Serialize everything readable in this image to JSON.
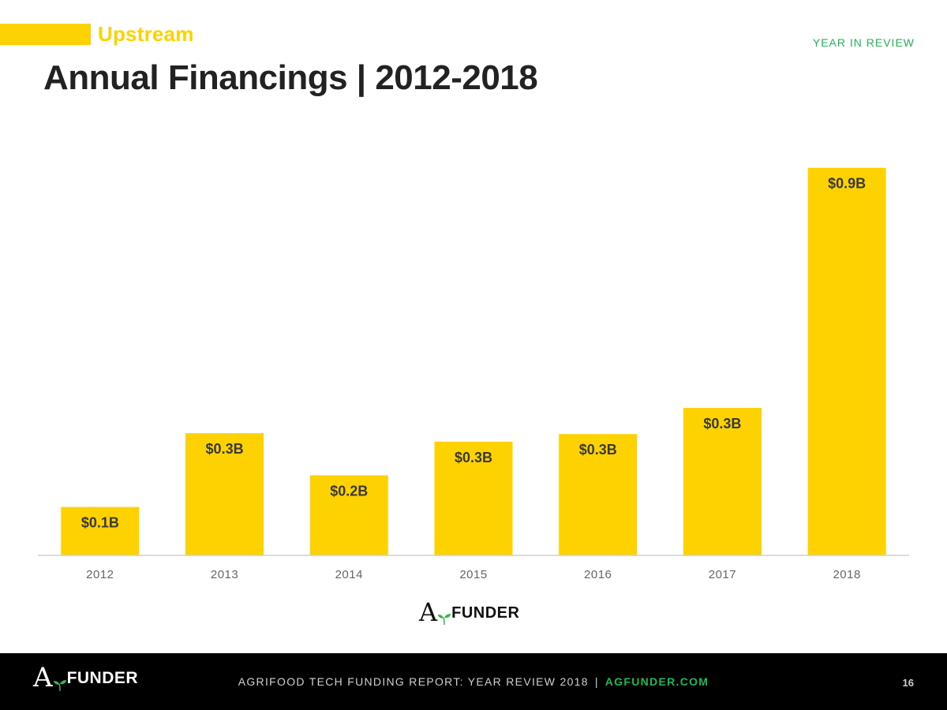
{
  "header": {
    "section_label": "Upstream",
    "title": "Annual Financings | 2012-2018",
    "top_right": "YEAR IN REVIEW"
  },
  "chart_data": {
    "type": "bar",
    "title": "Annual Financings | 2012-2018",
    "categories": [
      "2012",
      "2013",
      "2014",
      "2015",
      "2016",
      "2017",
      "2018"
    ],
    "values": [
      0.115,
      0.29,
      0.19,
      0.27,
      0.288,
      0.35,
      0.92
    ],
    "data_labels": [
      "$0.1B",
      "$0.3B",
      "$0.2B",
      "$0.3B",
      "$0.3B",
      "$0.3B",
      "$0.9B"
    ],
    "unit": "USD billions",
    "xlabel": "",
    "ylabel": "",
    "ylim": [
      0,
      1.0
    ],
    "grid": false,
    "legend": "none",
    "bar_color": "#FDD200",
    "label_color": "#3a3a3a"
  },
  "branding": {
    "logo_initial": "A",
    "logo_rest": "FUNDER",
    "leaf_color": "#3DB54A"
  },
  "footer": {
    "report_title": "AGRIFOOD TECH FUNDING REPORT: YEAR REVIEW 2018",
    "separator": "|",
    "url": "AGFUNDER.COM",
    "page_number": "16"
  },
  "colors": {
    "accent": "#FDD200",
    "green": "#1DB954",
    "title": "#222222",
    "footer_bg": "#000000"
  }
}
